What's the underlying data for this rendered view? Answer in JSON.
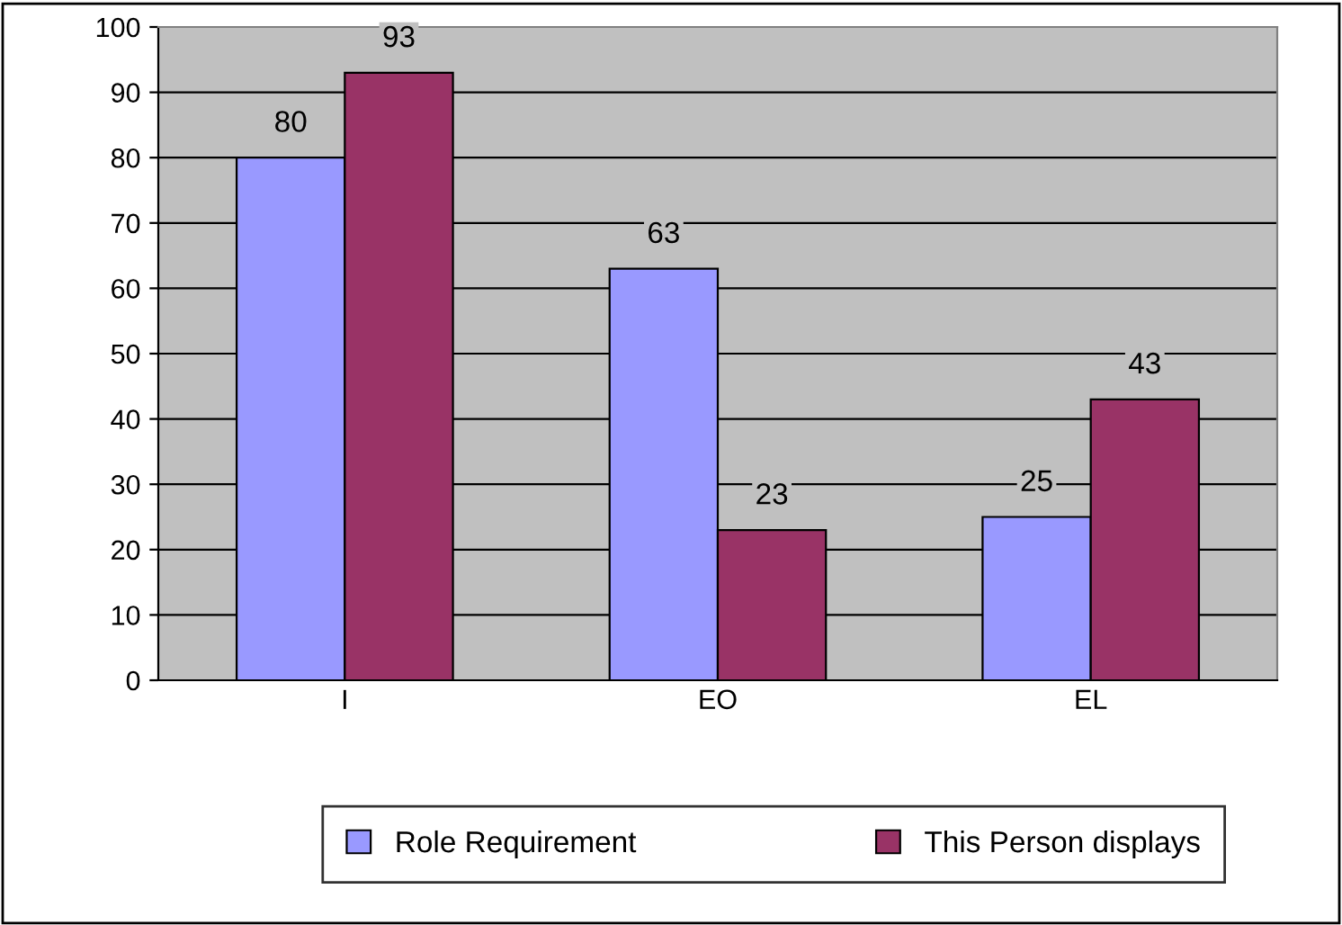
{
  "chart_data": {
    "type": "bar",
    "categories": [
      "I",
      "EO",
      "EL"
    ],
    "series": [
      {
        "name": "Role Requirement",
        "color": "#9999ff",
        "values": [
          80,
          63,
          25
        ]
      },
      {
        "name": "This Person displays",
        "color": "#993366",
        "values": [
          93,
          23,
          43
        ]
      }
    ],
    "ylim": [
      0,
      100
    ],
    "yticks": [
      0,
      10,
      20,
      30,
      40,
      50,
      60,
      70,
      80,
      90,
      100
    ],
    "grid": "y",
    "legend": "bottom",
    "data_labels": true
  }
}
